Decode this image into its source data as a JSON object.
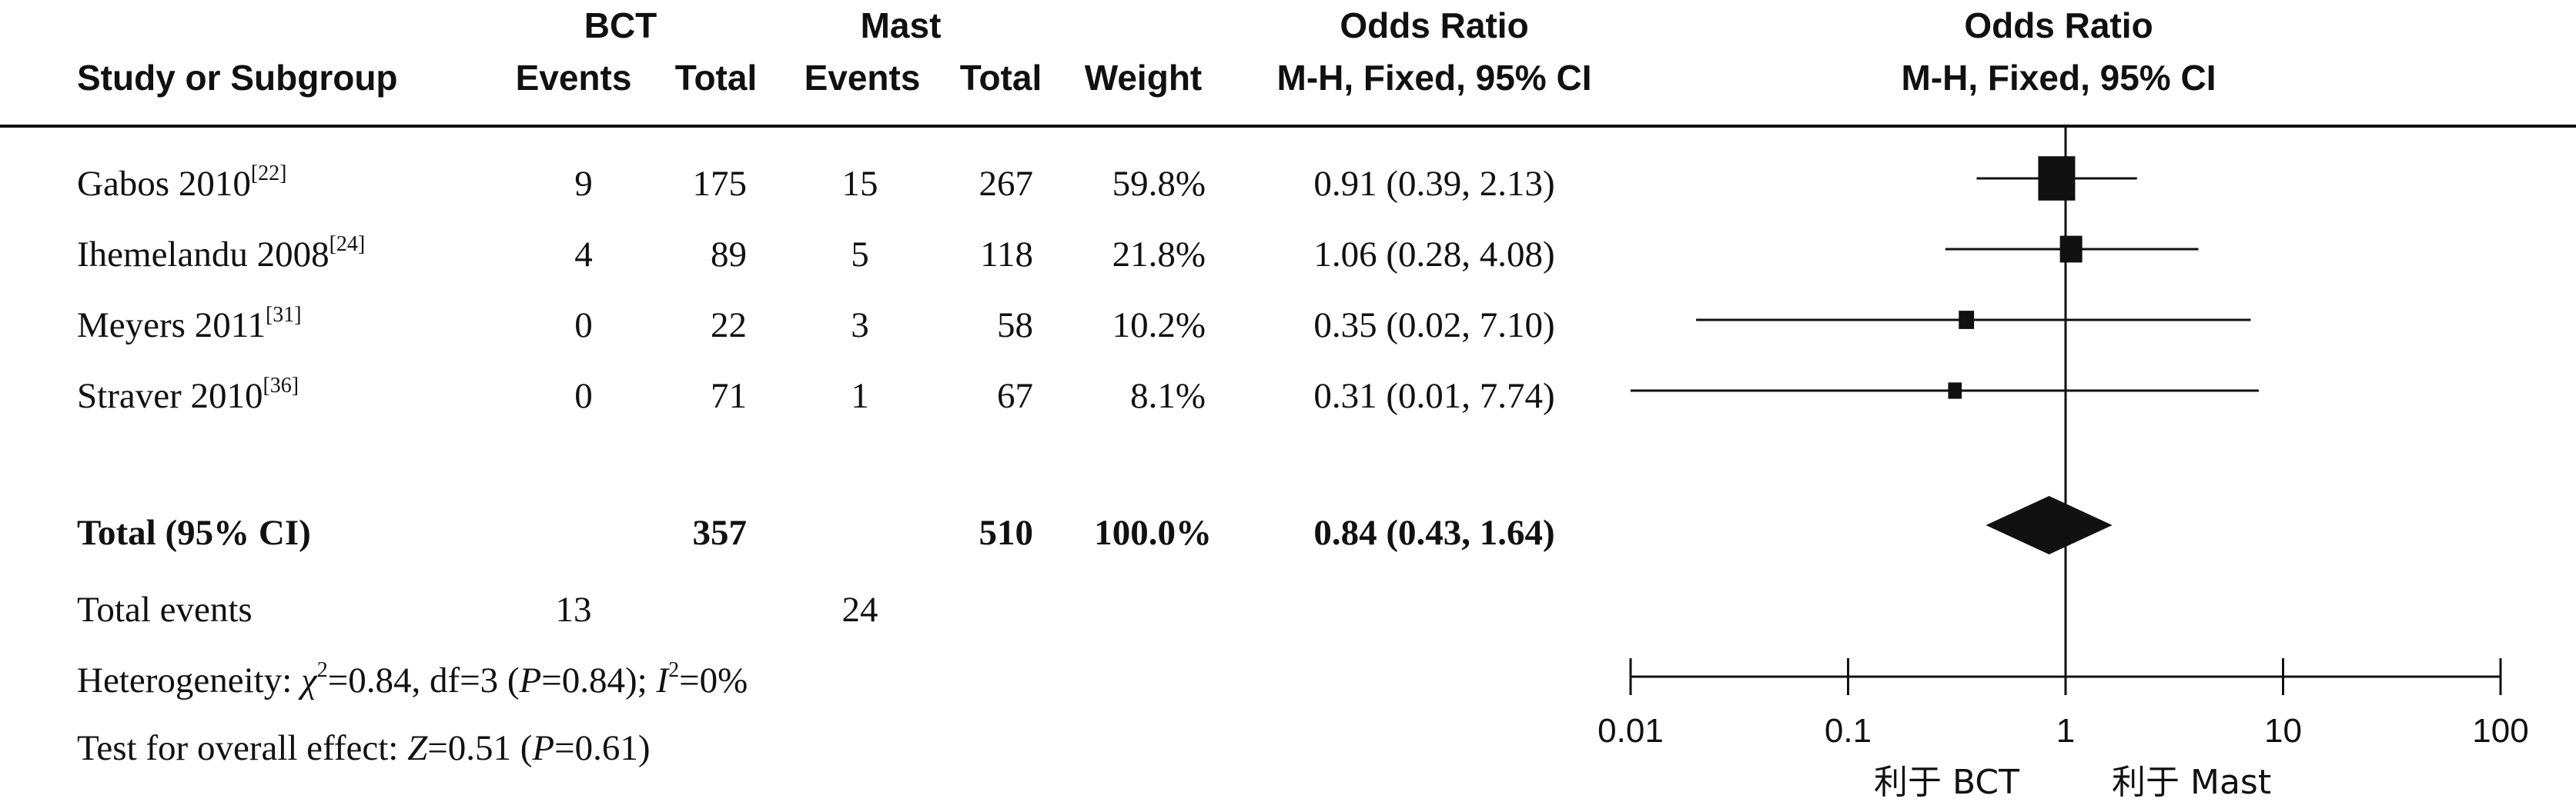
{
  "header": {
    "study": "Study or Subgroup",
    "group1": "BCT",
    "group2": "Mast",
    "events": "Events",
    "total": "Total",
    "weight": "Weight",
    "or_title": "Odds Ratio",
    "or_method": "M-H, Fixed, 95% CI"
  },
  "rows": [
    {
      "name": "Gabos 2010",
      "ref": "[22]",
      "e1": "9",
      "t1": "175",
      "e2": "15",
      "t2": "267",
      "weight": "59.8%",
      "ci": "0.91 (0.39, 2.13)"
    },
    {
      "name": "Ihemelandu 2008",
      "ref": "[24]",
      "e1": "4",
      "t1": "89",
      "e2": "5",
      "t2": "118",
      "weight": "21.8%",
      "ci": "1.06 (0.28, 4.08)"
    },
    {
      "name": "Meyers 2011",
      "ref": "[31]",
      "e1": "0",
      "t1": "22",
      "e2": "3",
      "t2": "58",
      "weight": "10.2%",
      "ci": "0.35 (0.02, 7.10)"
    },
    {
      "name": "Straver 2010",
      "ref": "[36]",
      "e1": "0",
      "t1": "71",
      "e2": "1",
      "t2": "67",
      "weight": "8.1%",
      "ci": "0.31 (0.01, 7.74)"
    }
  ],
  "total": {
    "label": "Total (95% CI)",
    "t1": "357",
    "t2": "510",
    "weight": "100.0%",
    "ci": "0.84 (0.43, 1.64)"
  },
  "total_events": {
    "label": "Total events",
    "e1": "13",
    "e2": "24"
  },
  "heterogeneity": {
    "prefix": "Heterogeneity: ",
    "chi": "χ",
    "chi_sup": "2",
    "chi_val": "=0.84, df=3 (",
    "p": "P",
    "p_val": "=0.84); ",
    "i": "I",
    "i_sup": "2",
    "i_val": "=0%"
  },
  "overall": {
    "prefix": "Test for overall effect: ",
    "z": "Z",
    "z_val": "=0.51 (",
    "p": "P",
    "p_val": "=0.61)"
  },
  "chart_data": {
    "type": "forest",
    "scale": "log",
    "xlim": [
      0.01,
      100
    ],
    "ticks": [
      0.01,
      0.1,
      1,
      10,
      100
    ],
    "tick_labels": [
      "0.01",
      "0.1",
      "1",
      "10",
      "100"
    ],
    "favours_left": "利于 BCT",
    "favours_right": "利于 Mast",
    "studies": [
      {
        "name": "Gabos 2010",
        "or": 0.91,
        "lower": 0.39,
        "upper": 2.13,
        "weight": 59.8
      },
      {
        "name": "Ihemelandu 2008",
        "or": 1.06,
        "lower": 0.28,
        "upper": 4.08,
        "weight": 21.8
      },
      {
        "name": "Meyers 2011",
        "or": 0.35,
        "lower": 0.02,
        "upper": 7.1,
        "weight": 10.2
      },
      {
        "name": "Straver 2010",
        "or": 0.31,
        "lower": 0.01,
        "upper": 7.74,
        "weight": 8.1
      }
    ],
    "pooled": {
      "or": 0.84,
      "lower": 0.43,
      "upper": 1.64
    },
    "colors": {
      "ink": "#111111"
    }
  }
}
